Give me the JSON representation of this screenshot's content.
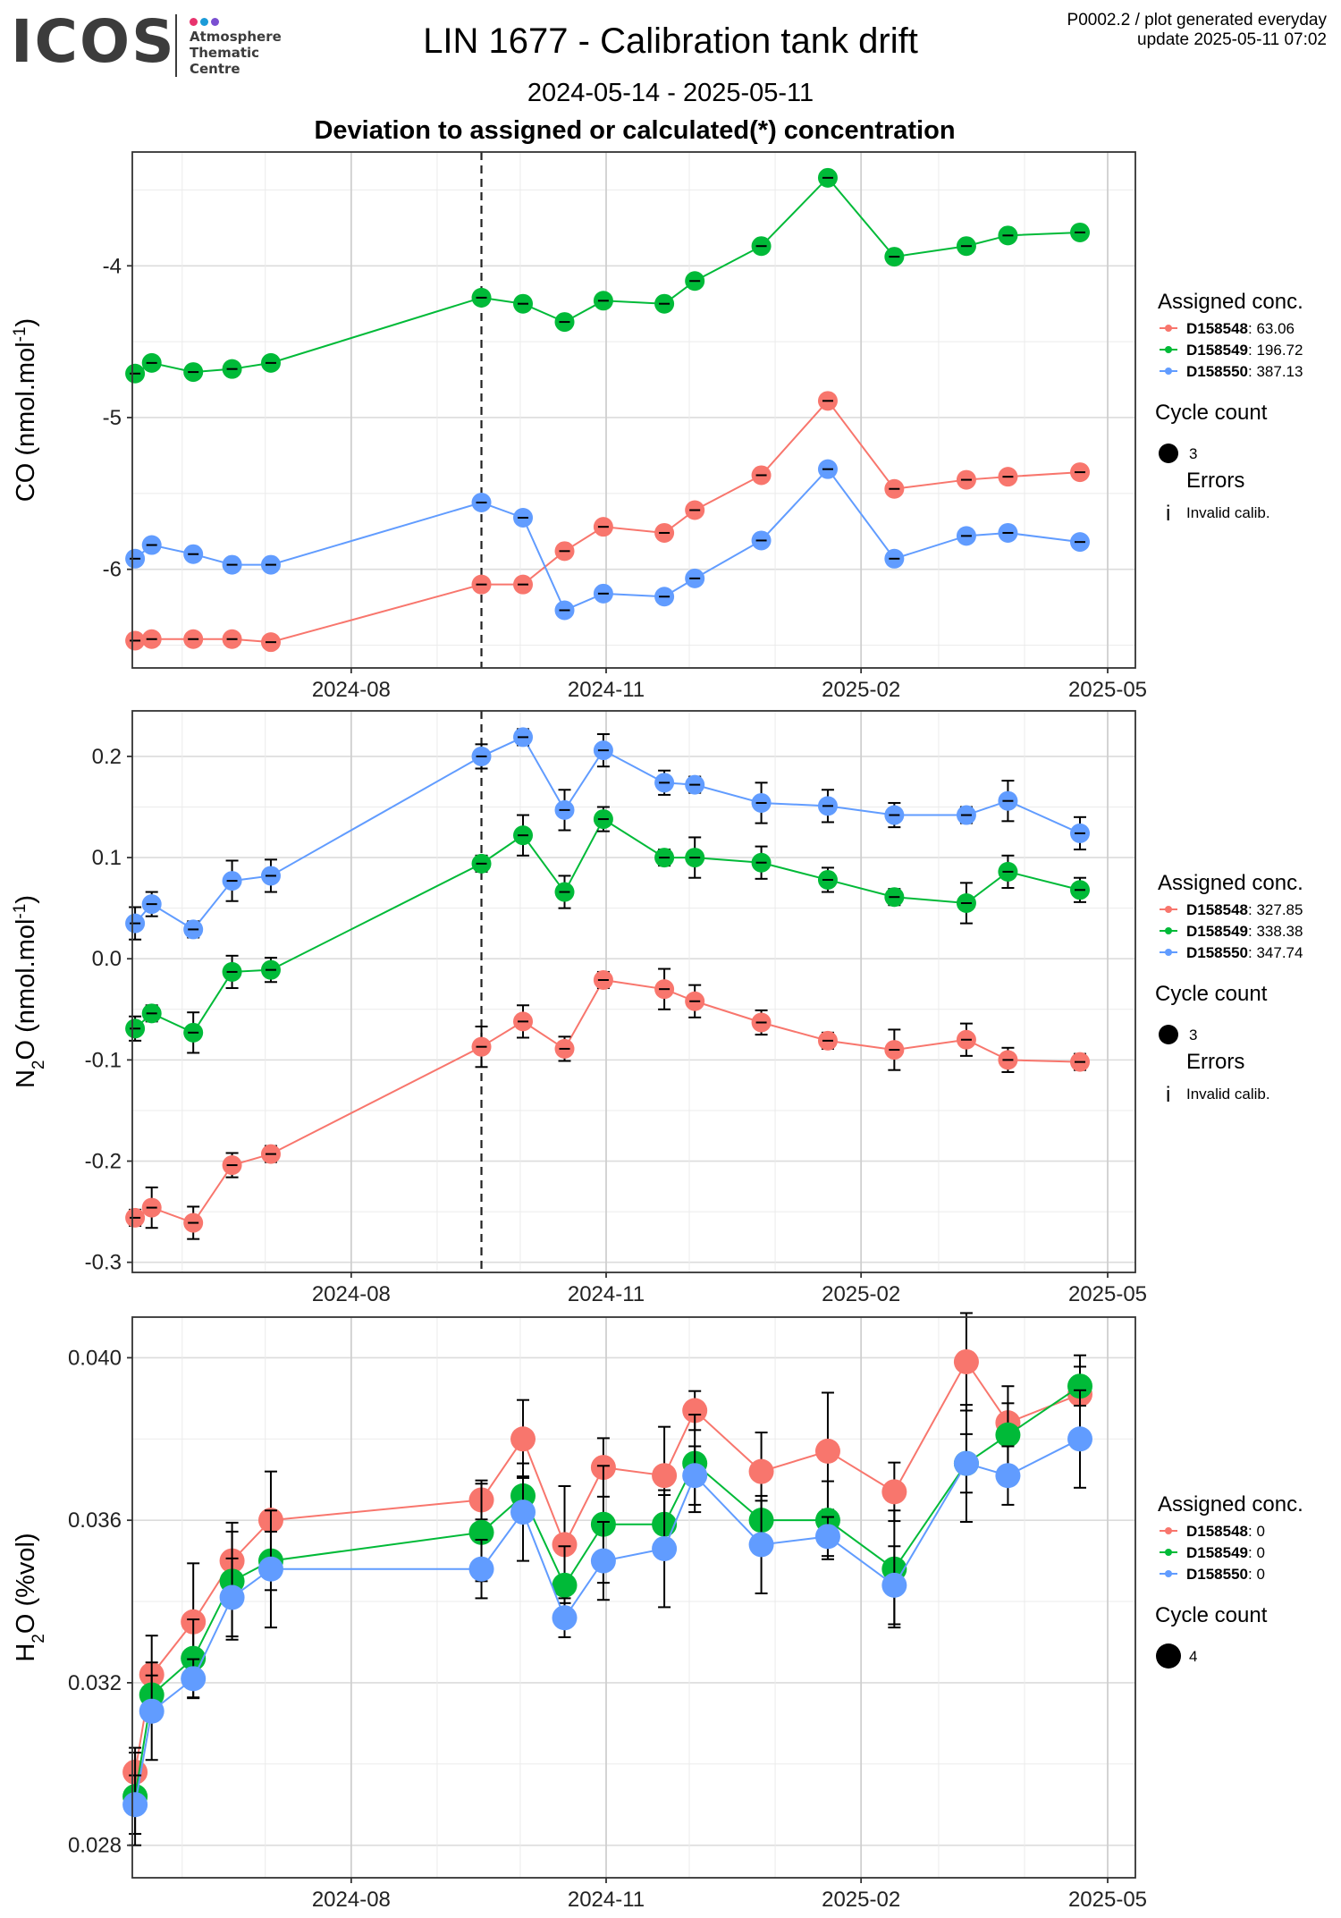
{
  "header": {
    "logo_text": "ICOS",
    "logo_sub": "Atmosphere\nThematic\nCentre",
    "logo_dot_colors": [
      "#e8336d",
      "#1b9bd8",
      "#7a4fd1"
    ],
    "title": "LIN 1677 - Calibration tank drift",
    "period": "2024-05-14 - 2025-05-11",
    "subtitle": "Deviation to assigned or calculated(*) concentration",
    "meta_line1": "P0002.2 / plot generated everyday",
    "meta_line2": "update  2025-05-11 07:02"
  },
  "colors": {
    "D158548": "#F8766D",
    "D158549": "#00BA38",
    "D158550": "#619CFF"
  },
  "chart_data": [
    {
      "type": "scatter",
      "name": "CO",
      "ylabel": "CO (nmol.mol",
      "ylabel_sup": "-1",
      "ylabel_tail": ")",
      "ylim": [
        -6.65,
        -3.25
      ],
      "yticks": [
        "-4",
        "-5",
        "-6"
      ],
      "ytick_values": [
        -4,
        -5,
        -6
      ],
      "xlim": [
        "2024-05-14",
        "2025-05-11"
      ],
      "xtick_labels": [
        "2024-08",
        "2024-11",
        "2025-02",
        "2025-05"
      ],
      "vline": "2024-09-17",
      "series": [
        {
          "name": "D158548",
          "legend_value": "63.06",
          "points": [
            [
              "2024-05-15",
              -6.47
            ],
            [
              "2024-05-21",
              -6.46
            ],
            [
              "2024-06-05",
              -6.46
            ],
            [
              "2024-06-19",
              -6.46
            ],
            [
              "2024-07-03",
              -6.48
            ],
            [
              "2024-09-17",
              -6.1
            ],
            [
              "2024-10-02",
              -6.1
            ],
            [
              "2024-10-17",
              -5.88
            ],
            [
              "2024-10-31",
              -5.72
            ],
            [
              "2024-11-22",
              -5.76
            ],
            [
              "2024-12-03",
              -5.61
            ],
            [
              "2024-12-27",
              -5.38
            ],
            [
              "2025-01-20",
              -4.89
            ],
            [
              "2025-02-13",
              -5.47
            ],
            [
              "2025-03-11",
              -5.41
            ],
            [
              "2025-03-26",
              -5.39
            ],
            [
              "2025-04-21",
              -5.36
            ]
          ]
        },
        {
          "name": "D158549",
          "legend_value": "196.72",
          "points": [
            [
              "2024-05-15",
              -4.71
            ],
            [
              "2024-05-21",
              -4.64
            ],
            [
              "2024-06-05",
              -4.7
            ],
            [
              "2024-06-19",
              -4.68
            ],
            [
              "2024-07-03",
              -4.64
            ],
            [
              "2024-09-17",
              -4.21
            ],
            [
              "2024-10-02",
              -4.25
            ],
            [
              "2024-10-17",
              -4.37
            ],
            [
              "2024-10-31",
              -4.23
            ],
            [
              "2024-11-22",
              -4.25
            ],
            [
              "2024-12-03",
              -4.1
            ],
            [
              "2024-12-27",
              -3.87
            ],
            [
              "2025-01-20",
              -3.42
            ],
            [
              "2025-02-13",
              -3.94
            ],
            [
              "2025-03-11",
              -3.87
            ],
            [
              "2025-03-26",
              -3.8
            ],
            [
              "2025-04-21",
              -3.78
            ]
          ]
        },
        {
          "name": "D158550",
          "legend_value": "387.13",
          "points": [
            [
              "2024-05-15",
              -5.93
            ],
            [
              "2024-05-21",
              -5.84
            ],
            [
              "2024-06-05",
              -5.9
            ],
            [
              "2024-06-19",
              -5.97
            ],
            [
              "2024-07-03",
              -5.97
            ],
            [
              "2024-09-17",
              -5.56
            ],
            [
              "2024-10-02",
              -5.66
            ],
            [
              "2024-10-17",
              -6.27
            ],
            [
              "2024-10-31",
              -6.16
            ],
            [
              "2024-11-22",
              -6.18
            ],
            [
              "2024-12-03",
              -6.06
            ],
            [
              "2024-12-27",
              -5.81
            ],
            [
              "2025-01-20",
              -5.34
            ],
            [
              "2025-02-13",
              -5.93
            ],
            [
              "2025-03-11",
              -5.78
            ],
            [
              "2025-03-26",
              -5.76
            ],
            [
              "2025-04-21",
              -5.82
            ]
          ]
        }
      ],
      "legend_title": "Assigned conc.",
      "cycle_title": "Cycle count",
      "cycle_value": "3",
      "errors_title": "Errors",
      "errors_label": "Invalid calib.",
      "errors_glyph": "i"
    },
    {
      "type": "scatter",
      "name": "N2O",
      "ylabel": "N",
      "ylabel_sub": "2",
      "ylabel_tail": "O (nmol.mol",
      "ylabel_sup": "-1",
      "ylabel_tail2": ")",
      "ylim": [
        -0.31,
        0.245
      ],
      "yticks": [
        "0.2",
        "0.1",
        "0.0",
        "-0.1",
        "-0.2",
        "-0.3"
      ],
      "ytick_values": [
        0.2,
        0.1,
        0.0,
        -0.1,
        -0.2,
        -0.3
      ],
      "xlim": [
        "2024-05-14",
        "2025-05-11"
      ],
      "xtick_labels": [
        "2024-08",
        "2024-11",
        "2025-02",
        "2025-05"
      ],
      "vline": "2024-09-17",
      "series": [
        {
          "name": "D158548",
          "legend_value": "327.85",
          "points": [
            [
              "2024-05-15",
              -0.256
            ],
            [
              "2024-05-21",
              -0.246
            ],
            [
              "2024-06-05",
              -0.261
            ],
            [
              "2024-06-19",
              -0.204
            ],
            [
              "2024-07-03",
              -0.193
            ],
            [
              "2024-09-17",
              -0.087
            ],
            [
              "2024-10-02",
              -0.062
            ],
            [
              "2024-10-17",
              -0.089
            ],
            [
              "2024-10-31",
              -0.021
            ],
            [
              "2024-11-22",
              -0.03
            ],
            [
              "2024-12-03",
              -0.042
            ],
            [
              "2024-12-27",
              -0.063
            ],
            [
              "2025-01-20",
              -0.081
            ],
            [
              "2025-02-13",
              -0.09
            ],
            [
              "2025-03-11",
              -0.08
            ],
            [
              "2025-03-26",
              -0.1
            ],
            [
              "2025-04-21",
              -0.102
            ]
          ]
        },
        {
          "name": "D158549",
          "legend_value": "338.38",
          "points": [
            [
              "2024-05-15",
              -0.069
            ],
            [
              "2024-05-21",
              -0.054
            ],
            [
              "2024-06-05",
              -0.073
            ],
            [
              "2024-06-19",
              -0.013
            ],
            [
              "2024-07-03",
              -0.011
            ],
            [
              "2024-09-17",
              0.094
            ],
            [
              "2024-10-02",
              0.122
            ],
            [
              "2024-10-17",
              0.066
            ],
            [
              "2024-10-31",
              0.138
            ],
            [
              "2024-11-22",
              0.1
            ],
            [
              "2024-12-03",
              0.1
            ],
            [
              "2024-12-27",
              0.095
            ],
            [
              "2025-01-20",
              0.078
            ],
            [
              "2025-02-13",
              0.061
            ],
            [
              "2025-03-11",
              0.055
            ],
            [
              "2025-03-26",
              0.086
            ],
            [
              "2025-04-21",
              0.068
            ]
          ]
        },
        {
          "name": "D158550",
          "legend_value": "347.74",
          "points": [
            [
              "2024-05-15",
              0.035
            ],
            [
              "2024-05-21",
              0.054
            ],
            [
              "2024-06-05",
              0.029
            ],
            [
              "2024-06-19",
              0.077
            ],
            [
              "2024-07-03",
              0.082
            ],
            [
              "2024-09-17",
              0.2
            ],
            [
              "2024-10-02",
              0.219
            ],
            [
              "2024-10-17",
              0.147
            ],
            [
              "2024-10-31",
              0.206
            ],
            [
              "2024-11-22",
              0.174
            ],
            [
              "2024-12-03",
              0.172
            ],
            [
              "2024-12-27",
              0.154
            ],
            [
              "2025-01-20",
              0.151
            ],
            [
              "2025-02-13",
              0.142
            ],
            [
              "2025-03-11",
              0.142
            ],
            [
              "2025-03-26",
              0.156
            ],
            [
              "2025-04-21",
              0.124
            ]
          ]
        }
      ],
      "legend_title": "Assigned conc.",
      "cycle_title": "Cycle count",
      "cycle_value": "3",
      "errors_title": "Errors",
      "errors_label": "Invalid calib.",
      "errors_glyph": "i"
    },
    {
      "type": "scatter",
      "name": "H2O",
      "ylabel": "H",
      "ylabel_sub": "2",
      "ylabel_tail": "O (%vol)",
      "ylim": [
        0.0272,
        0.041
      ],
      "yticks": [
        "0.040",
        "0.036",
        "0.032",
        "0.028"
      ],
      "ytick_values": [
        0.04,
        0.036,
        0.032,
        0.028
      ],
      "xlim": [
        "2024-05-14",
        "2025-05-11"
      ],
      "xtick_labels": [
        "2024-08",
        "2024-11",
        "2025-02",
        "2025-05"
      ],
      "series": [
        {
          "name": "D158548",
          "legend_value": "0",
          "points": [
            [
              "2024-05-15",
              0.0298
            ],
            [
              "2024-05-21",
              0.0322
            ],
            [
              "2024-06-05",
              0.0335
            ],
            [
              "2024-06-19",
              0.035
            ],
            [
              "2024-07-03",
              0.036
            ],
            [
              "2024-09-17",
              0.0365
            ],
            [
              "2024-10-02",
              0.038
            ],
            [
              "2024-10-17",
              0.0354
            ],
            [
              "2024-10-31",
              0.0373
            ],
            [
              "2024-11-22",
              0.0371
            ],
            [
              "2024-12-03",
              0.0387
            ],
            [
              "2024-12-27",
              0.0372
            ],
            [
              "2025-01-20",
              0.0377
            ],
            [
              "2025-02-13",
              0.0367
            ],
            [
              "2025-03-11",
              0.0399
            ],
            [
              "2025-03-26",
              0.0384
            ],
            [
              "2025-04-21",
              0.0391
            ]
          ]
        },
        {
          "name": "D158549",
          "legend_value": "0",
          "points": [
            [
              "2024-05-15",
              0.0292
            ],
            [
              "2024-05-21",
              0.0317
            ],
            [
              "2024-06-05",
              0.0326
            ],
            [
              "2024-06-19",
              0.0345
            ],
            [
              "2024-07-03",
              0.035
            ],
            [
              "2024-09-17",
              0.0357
            ],
            [
              "2024-10-02",
              0.0366
            ],
            [
              "2024-10-17",
              0.0344
            ],
            [
              "2024-10-31",
              0.0359
            ],
            [
              "2024-11-22",
              0.0359
            ],
            [
              "2024-12-03",
              0.0374
            ],
            [
              "2024-12-27",
              0.036
            ],
            [
              "2025-01-20",
              0.036
            ],
            [
              "2025-02-13",
              0.0348
            ],
            [
              "2025-03-11",
              0.0374
            ],
            [
              "2025-03-26",
              0.0381
            ],
            [
              "2025-04-21",
              0.0393
            ]
          ]
        },
        {
          "name": "D158550",
          "legend_value": "0",
          "points": [
            [
              "2024-05-15",
              0.029
            ],
            [
              "2024-05-21",
              0.0313
            ],
            [
              "2024-06-05",
              0.0321
            ],
            [
              "2024-06-19",
              0.0341
            ],
            [
              "2024-07-03",
              0.0348
            ],
            [
              "2024-09-17",
              0.0348
            ],
            [
              "2024-10-02",
              0.0362
            ],
            [
              "2024-10-17",
              0.0336
            ],
            [
              "2024-10-31",
              0.035
            ],
            [
              "2024-11-22",
              0.0353
            ],
            [
              "2024-12-03",
              0.0371
            ],
            [
              "2024-12-27",
              0.0354
            ],
            [
              "2025-01-20",
              0.0356
            ],
            [
              "2025-02-13",
              0.0344
            ],
            [
              "2025-03-11",
              0.0374
            ],
            [
              "2025-03-26",
              0.0371
            ],
            [
              "2025-04-21",
              0.038
            ]
          ]
        }
      ],
      "legend_title": "Assigned conc.",
      "cycle_title": "Cycle count",
      "cycle_value": "4"
    }
  ]
}
